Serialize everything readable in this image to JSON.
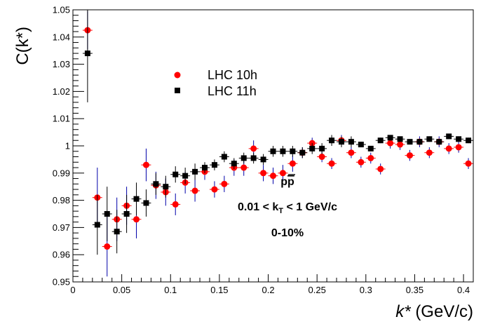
{
  "chart_data": {
    "type": "scatter",
    "title": "",
    "xlabel": {
      "var": "k*",
      "unit": "(GeV/c)"
    },
    "ylabel": {
      "var": "C(k*)"
    },
    "xlim": [
      0,
      0.41
    ],
    "ylim": [
      0.95,
      1.05
    ],
    "x_major_ticks": [
      0,
      0.05,
      0.1,
      0.15,
      0.2,
      0.25,
      0.3,
      0.35,
      0.4
    ],
    "x_tick_labels": [
      "0",
      "0.05",
      "0.1",
      "0.15",
      "0.2",
      "0.25",
      "0.3",
      "0.35",
      "0.4"
    ],
    "y_major_ticks": [
      0.95,
      0.96,
      0.97,
      0.98,
      0.99,
      1.0,
      1.01,
      1.02,
      1.03,
      1.04,
      1.05
    ],
    "y_tick_labels": [
      "0.95",
      "0.96",
      "0.97",
      "0.98",
      "0.99",
      "1",
      "1.01",
      "1.02",
      "1.03",
      "1.04",
      "1.05"
    ],
    "grid": false,
    "legend_position": "upper-left",
    "annotations": [
      {
        "id": "system",
        "text": "pp̅",
        "rich": "pbar"
      },
      {
        "id": "kt",
        "text": "0.01 < kT < 1 GeV/c"
      },
      {
        "id": "centrality",
        "text": "0-10%"
      }
    ],
    "series": [
      {
        "name": "LHC 10h",
        "color": "#ff0000",
        "marker": "circle",
        "x": [
          0.015,
          0.025,
          0.035,
          0.045,
          0.055,
          0.065,
          0.075,
          0.085,
          0.095,
          0.105,
          0.115,
          0.125,
          0.135,
          0.145,
          0.155,
          0.165,
          0.175,
          0.185,
          0.195,
          0.205,
          0.215,
          0.225,
          0.235,
          0.245,
          0.255,
          0.265,
          0.275,
          0.285,
          0.295,
          0.305,
          0.315,
          0.325,
          0.335,
          0.345,
          0.355,
          0.365,
          0.375,
          0.385,
          0.395,
          0.405
        ],
        "y": [
          1.0425,
          0.981,
          0.963,
          0.973,
          0.978,
          0.973,
          0.993,
          0.9855,
          0.983,
          0.9785,
          0.9865,
          0.9835,
          0.9905,
          0.984,
          0.986,
          0.992,
          0.992,
          0.999,
          0.99,
          0.989,
          0.99,
          0.9935,
          0.9975,
          1.001,
          0.996,
          0.9935,
          1.002,
          0.9975,
          0.994,
          0.9955,
          0.9915,
          1.001,
          1.0005,
          0.9965,
          1.0015,
          0.9975,
          1.0015,
          0.999,
          0.9995,
          0.9935
        ],
        "yerr": [
          0.007,
          0.011,
          0.011,
          0.008,
          0.007,
          0.007,
          0.006,
          0.005,
          0.005,
          0.004,
          0.004,
          0.004,
          0.003,
          0.003,
          0.003,
          0.003,
          0.003,
          0.003,
          0.003,
          0.003,
          0.003,
          0.003,
          0.002,
          0.002,
          0.002,
          0.002,
          0.002,
          0.002,
          0.002,
          0.002,
          0.002,
          0.002,
          0.002,
          0.002,
          0.002,
          0.002,
          0.002,
          0.002,
          0.002,
          0.002
        ]
      },
      {
        "name": "LHC 11h",
        "color": "#000000",
        "marker": "square",
        "x": [
          0.015,
          0.025,
          0.035,
          0.045,
          0.055,
          0.065,
          0.075,
          0.085,
          0.095,
          0.105,
          0.115,
          0.125,
          0.135,
          0.145,
          0.155,
          0.165,
          0.175,
          0.185,
          0.195,
          0.205,
          0.215,
          0.225,
          0.235,
          0.245,
          0.255,
          0.265,
          0.275,
          0.285,
          0.295,
          0.305,
          0.315,
          0.325,
          0.335,
          0.345,
          0.355,
          0.365,
          0.375,
          0.385,
          0.395,
          0.405
        ],
        "y": [
          1.034,
          0.971,
          0.975,
          0.9685,
          0.975,
          0.9805,
          0.979,
          0.986,
          0.985,
          0.9895,
          0.989,
          0.9905,
          0.992,
          0.993,
          0.996,
          0.9935,
          0.9955,
          0.9955,
          0.995,
          0.998,
          0.998,
          0.998,
          0.9975,
          0.999,
          0.999,
          1.002,
          1.0015,
          1.0015,
          1.0005,
          0.999,
          1.002,
          1.003,
          1.0025,
          1.0015,
          1.0015,
          1.0025,
          1.0015,
          1.0035,
          1.0025,
          1.002
        ],
        "yerr": [
          0.018,
          0.011,
          0.01,
          0.008,
          0.007,
          0.006,
          0.005,
          0.004,
          0.004,
          0.003,
          0.003,
          0.003,
          0.002,
          0.002,
          0.002,
          0.002,
          0.002,
          0.002,
          0.002,
          0.002,
          0.002,
          0.002,
          0.002,
          0.002,
          0.002,
          0.002,
          0.002,
          0.002,
          0.001,
          0.001,
          0.001,
          0.001,
          0.001,
          0.001,
          0.001,
          0.001,
          0.001,
          0.001,
          0.001,
          0.001
        ]
      }
    ]
  }
}
